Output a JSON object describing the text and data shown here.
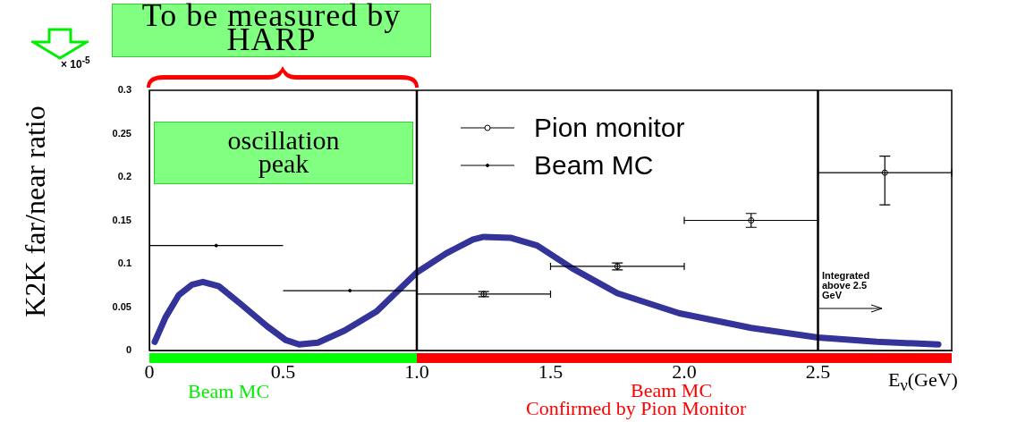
{
  "chart_data": {
    "type": "line",
    "ylabel": "K2K far/near ratio",
    "xlabel": "E$_{ν}$(GeV)",
    "annotations": [
      "To be measured by HARP",
      "× 10$^{-5}$",
      "oscillation peak",
      "Integrated above 2.5 GeV",
      "Beam MC",
      "Beam MC",
      "Confirmed by Pion Monitor"
    ],
    "xlim": [
      0,
      3.0
    ],
    "xticks": [
      0,
      0.5,
      {
        "value": 1.0,
        "label": "1.0"
      },
      1.5,
      {
        "value": 2.0,
        "label": "2.0"
      },
      2.5,
      {
        "value": 3.0,
        "label": null
      }
    ],
    "ylim": [
      0,
      0.3
    ],
    "yticks": [
      0,
      0.05,
      0.1,
      0.15,
      0.2,
      0.25,
      0.3
    ],
    "legend": "top",
    "ref_lines": [
      {
        "axis": "x",
        "value": 1.0,
        "color": "#000000"
      },
      {
        "axis": "x",
        "value": 2.5,
        "color": "#000000"
      }
    ],
    "series": [
      {
        "name": "Pion monitor",
        "type": "scatter",
        "color": "#000000",
        "marker": "circle",
        "x": [
          1.25,
          1.75,
          2.25,
          2.75
        ],
        "values": [
          0.065,
          0.097,
          0.15,
          0.205
        ],
        "errors": [
          0.003,
          0.004,
          0.008,
          [
            0.168,
            0.224
          ]
        ],
        "xerrors": [
          0.25,
          0.25,
          0.25,
          0.25
        ]
      },
      {
        "name": "Beam MC",
        "type": "scatter",
        "color": "#000000",
        "marker": "circle",
        "x": [
          0.25,
          0.75
        ],
        "values": [
          0.121,
          0.069
        ],
        "xerrors": [
          0.25,
          0.25
        ]
      },
      {
        "color": "#333399",
        "marker": "none",
        "x": [
          0.02,
          0.06,
          0.11,
          0.16,
          0.2,
          0.26,
          0.34,
          0.44,
          0.51,
          0.56,
          0.63,
          0.73,
          0.85,
          1.0,
          1.11,
          1.21,
          1.25,
          1.35,
          1.45,
          1.58,
          1.75,
          1.98,
          2.25,
          2.5,
          2.72,
          2.95
        ],
        "values": [
          0.01,
          0.038,
          0.064,
          0.076,
          0.079,
          0.074,
          0.054,
          0.028,
          0.012,
          0.007,
          0.009,
          0.023,
          0.045,
          0.09,
          0.112,
          0.128,
          0.131,
          0.13,
          0.121,
          0.095,
          0.066,
          0.043,
          0.026,
          0.015,
          0.01,
          0.007
        ]
      }
    ]
  }
}
